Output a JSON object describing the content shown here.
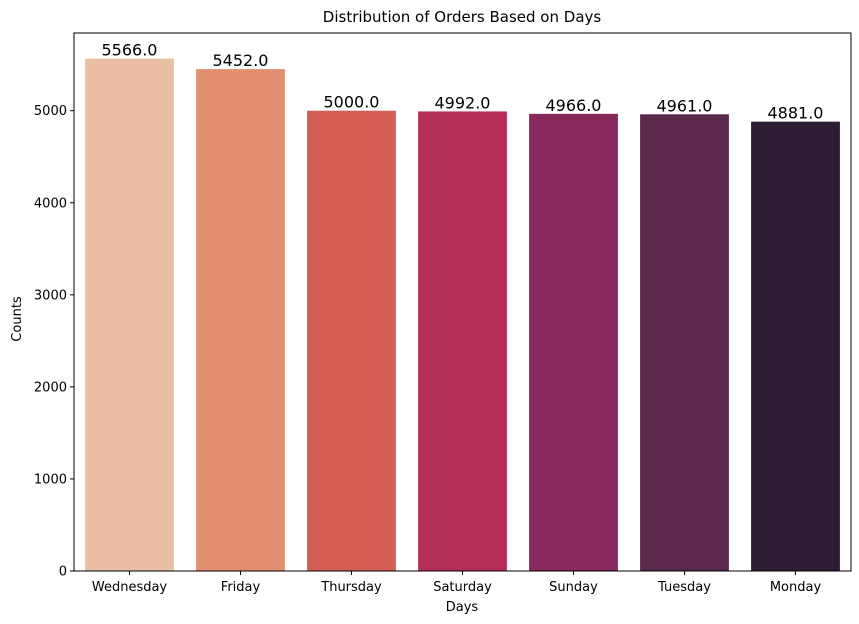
{
  "chart_data": {
    "type": "bar",
    "title": "Distribution of Orders Based on Days",
    "xlabel": "Days",
    "ylabel": "Counts",
    "categories": [
      "Wednesday",
      "Friday",
      "Thursday",
      "Saturday",
      "Sunday",
      "Tuesday",
      "Monday"
    ],
    "values": [
      5566.0,
      5452.0,
      5000.0,
      4992.0,
      4966.0,
      4961.0,
      4881.0
    ],
    "data_labels": [
      "5566.0",
      "5452.0",
      "5000.0",
      "4992.0",
      "4966.0",
      "4961.0",
      "4881.0"
    ],
    "colors": [
      "#EBBFA3",
      "#E28F71",
      "#D45D54",
      "#B42F55",
      "#87295C",
      "#5A274D",
      "#2E1C35"
    ],
    "ylim": [
      0,
      5844
    ],
    "yticks": [
      0,
      1000,
      2000,
      3000,
      4000,
      5000
    ],
    "ytick_labels": [
      "0",
      "1000",
      "2000",
      "3000",
      "4000",
      "5000"
    ],
    "grid": false,
    "legend": "none"
  }
}
